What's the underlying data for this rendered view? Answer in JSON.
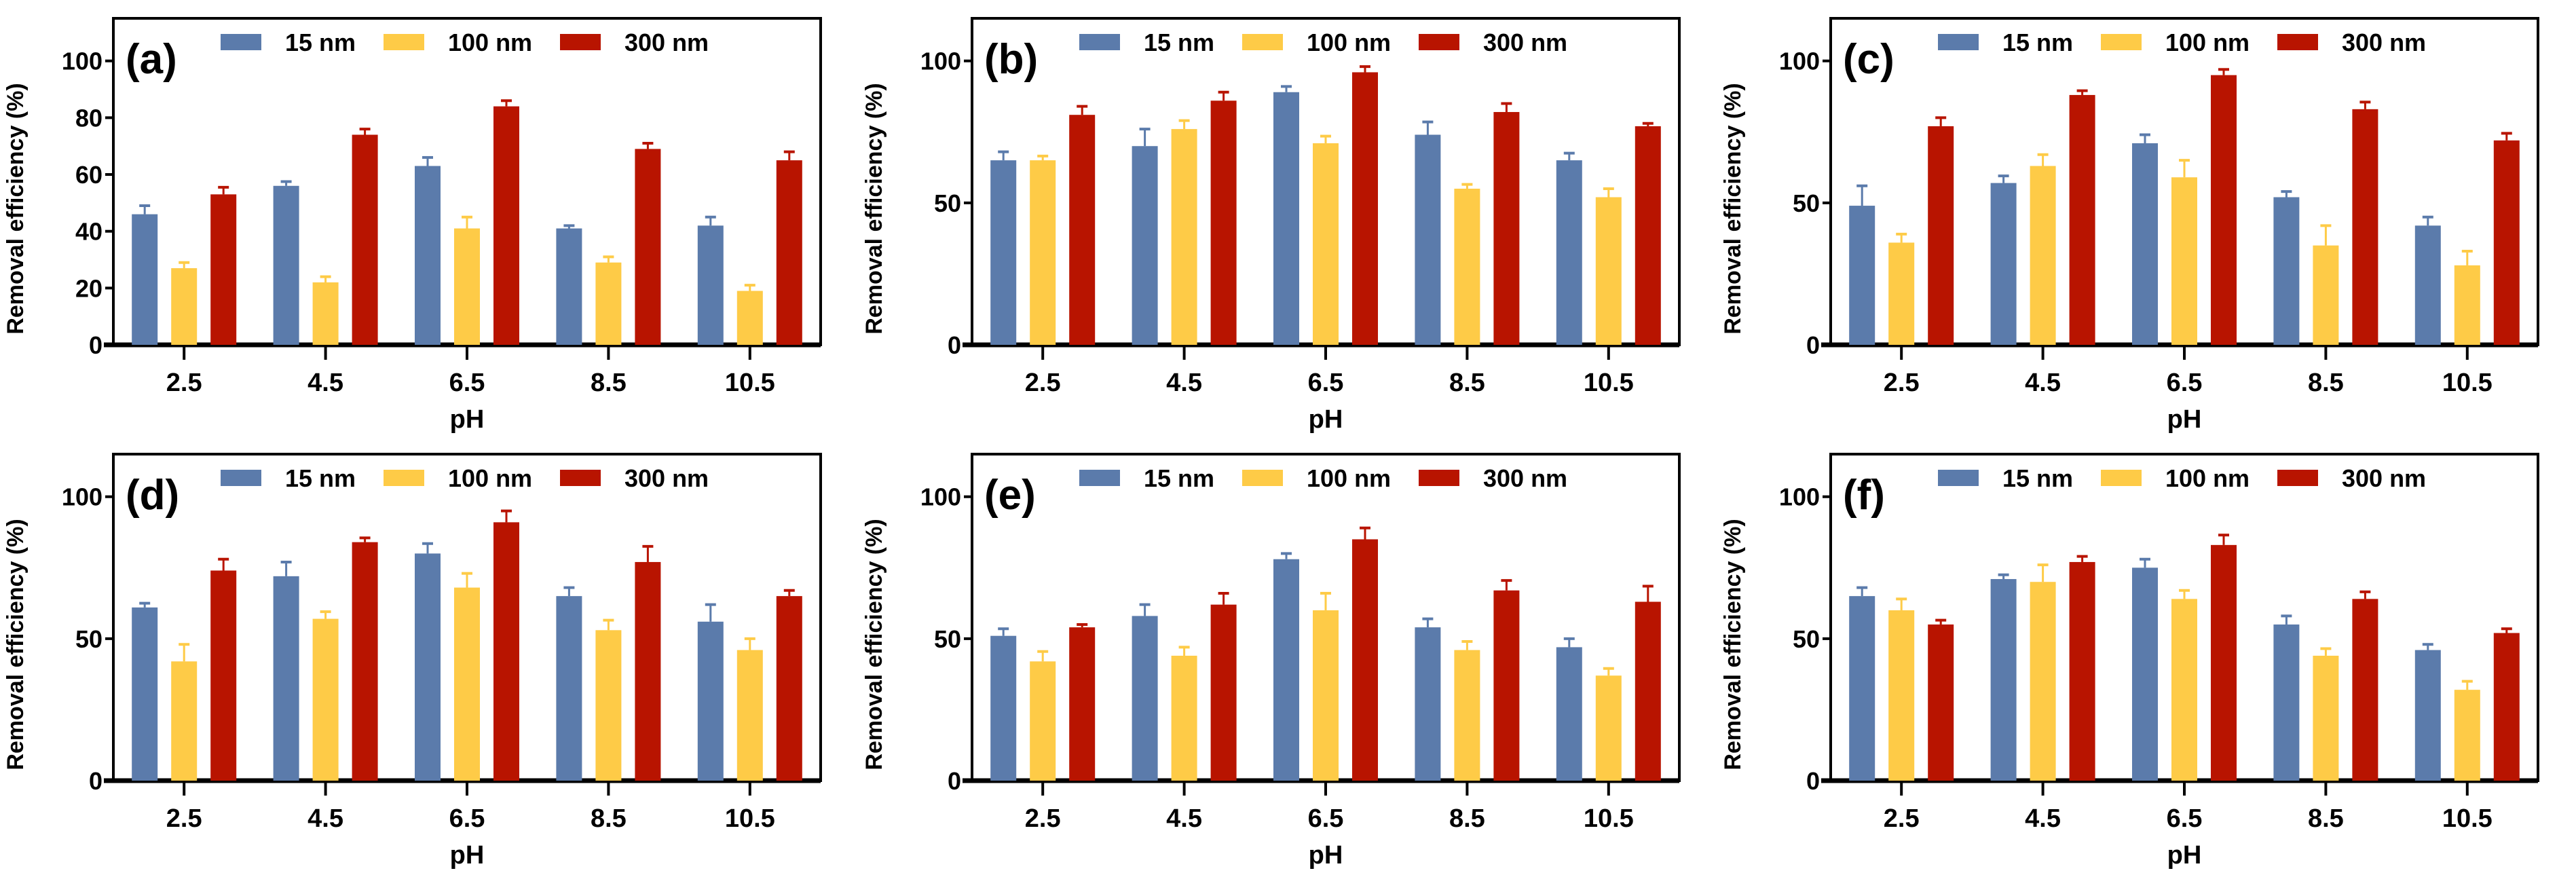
{
  "chart_data": [
    {
      "type": "bar",
      "label": "(a)",
      "xlabel": "pH",
      "ylabel": "Removal efficiency (%)",
      "categories": [
        "2.5",
        "4.5",
        "6.5",
        "8.5",
        "10.5"
      ],
      "ylim": [
        0,
        115
      ],
      "yticks": [
        0,
        20,
        40,
        60,
        80,
        100
      ],
      "legend": "top",
      "series": [
        {
          "name": "15 nm",
          "color": "#5b7bab",
          "values": [
            46,
            56,
            63,
            41,
            42
          ],
          "errors": [
            3,
            1.5,
            3,
            1,
            3
          ]
        },
        {
          "name": "100 nm",
          "color": "#fecb47",
          "values": [
            27,
            22,
            41,
            29,
            19
          ],
          "errors": [
            2,
            2,
            4,
            2,
            2
          ]
        },
        {
          "name": "300 nm",
          "color": "#b81400",
          "values": [
            53,
            74,
            84,
            69,
            65
          ],
          "errors": [
            2.5,
            2,
            2,
            2,
            3
          ]
        }
      ]
    },
    {
      "type": "bar",
      "label": "(b)",
      "xlabel": "pH",
      "ylabel": "Removal efficiency (%)",
      "categories": [
        "2.5",
        "4.5",
        "6.5",
        "8.5",
        "10.5"
      ],
      "ylim": [
        0,
        115
      ],
      "yticks": [
        0,
        50,
        100
      ],
      "legend": "top",
      "series": [
        {
          "name": "15 nm",
          "color": "#5b7bab",
          "values": [
            65,
            70,
            89,
            74,
            65
          ],
          "errors": [
            3,
            6,
            2,
            4.5,
            2.5
          ]
        },
        {
          "name": "100 nm",
          "color": "#fecb47",
          "values": [
            65,
            76,
            71,
            55,
            52
          ],
          "errors": [
            1.5,
            3,
            2.5,
            1.5,
            3
          ]
        },
        {
          "name": "300 nm",
          "color": "#b81400",
          "values": [
            81,
            86,
            96,
            82,
            77
          ],
          "errors": [
            3,
            3,
            2,
            3,
            1
          ]
        }
      ]
    },
    {
      "type": "bar",
      "label": "(c)",
      "xlabel": "pH",
      "ylabel": "Removal efficiency (%)",
      "categories": [
        "2.5",
        "4.5",
        "6.5",
        "8.5",
        "10.5"
      ],
      "ylim": [
        0,
        115
      ],
      "yticks": [
        0,
        50,
        100
      ],
      "legend": "top",
      "series": [
        {
          "name": "15 nm",
          "color": "#5b7bab",
          "values": [
            49,
            57,
            71,
            52,
            42
          ],
          "errors": [
            7,
            2.5,
            3,
            2,
            3
          ]
        },
        {
          "name": "100 nm",
          "color": "#fecb47",
          "values": [
            36,
            63,
            59,
            35,
            28
          ],
          "errors": [
            3,
            4,
            6,
            7,
            5
          ]
        },
        {
          "name": "300 nm",
          "color": "#b81400",
          "values": [
            77,
            88,
            95,
            83,
            72
          ],
          "errors": [
            3,
            1.5,
            2,
            2.5,
            2.5
          ]
        }
      ]
    },
    {
      "type": "bar",
      "label": "(d)",
      "xlabel": "pH",
      "ylabel": "Removal efficiency (%)",
      "categories": [
        "2.5",
        "4.5",
        "6.5",
        "8.5",
        "10.5"
      ],
      "ylim": [
        0,
        115
      ],
      "yticks": [
        0,
        50,
        100
      ],
      "legend": "top",
      "series": [
        {
          "name": "15 nm",
          "color": "#5b7bab",
          "values": [
            61,
            72,
            80,
            65,
            56
          ],
          "errors": [
            1.5,
            5,
            3.5,
            3,
            6
          ]
        },
        {
          "name": "100 nm",
          "color": "#fecb47",
          "values": [
            42,
            57,
            68,
            53,
            46
          ],
          "errors": [
            6,
            2.5,
            5,
            3.5,
            4
          ]
        },
        {
          "name": "300 nm",
          "color": "#b81400",
          "values": [
            74,
            84,
            91,
            77,
            65
          ],
          "errors": [
            4,
            1.5,
            4,
            5.5,
            2
          ]
        }
      ]
    },
    {
      "type": "bar",
      "label": "(e)",
      "xlabel": "pH",
      "ylabel": "Removal efficiency (%)",
      "categories": [
        "2.5",
        "4.5",
        "6.5",
        "8.5",
        "10.5"
      ],
      "ylim": [
        0,
        115
      ],
      "yticks": [
        0,
        50,
        100
      ],
      "legend": "top",
      "series": [
        {
          "name": "15 nm",
          "color": "#5b7bab",
          "values": [
            51,
            58,
            78,
            54,
            47
          ],
          "errors": [
            2.5,
            4,
            2,
            3,
            3
          ]
        },
        {
          "name": "100 nm",
          "color": "#fecb47",
          "values": [
            42,
            44,
            60,
            46,
            37
          ],
          "errors": [
            3.5,
            3,
            6,
            3,
            2.5
          ]
        },
        {
          "name": "300 nm",
          "color": "#b81400",
          "values": [
            54,
            62,
            85,
            67,
            63
          ],
          "errors": [
            1,
            4,
            4,
            3.5,
            5.5
          ]
        }
      ]
    },
    {
      "type": "bar",
      "label": "(f)",
      "xlabel": "pH",
      "ylabel": "Removal efficiency (%)",
      "categories": [
        "2.5",
        "4.5",
        "6.5",
        "8.5",
        "10.5"
      ],
      "ylim": [
        0,
        115
      ],
      "yticks": [
        0,
        50,
        100
      ],
      "legend": "top",
      "series": [
        {
          "name": "15 nm",
          "color": "#5b7bab",
          "values": [
            65,
            71,
            75,
            55,
            46
          ],
          "errors": [
            3,
            1.5,
            3,
            3,
            2
          ]
        },
        {
          "name": "100 nm",
          "color": "#fecb47",
          "values": [
            60,
            70,
            64,
            44,
            32
          ],
          "errors": [
            4,
            6,
            3,
            2.5,
            3
          ]
        },
        {
          "name": "300 nm",
          "color": "#b81400",
          "values": [
            55,
            77,
            83,
            64,
            52
          ],
          "errors": [
            1.5,
            2,
            3.5,
            2.5,
            1.5
          ]
        }
      ]
    }
  ]
}
